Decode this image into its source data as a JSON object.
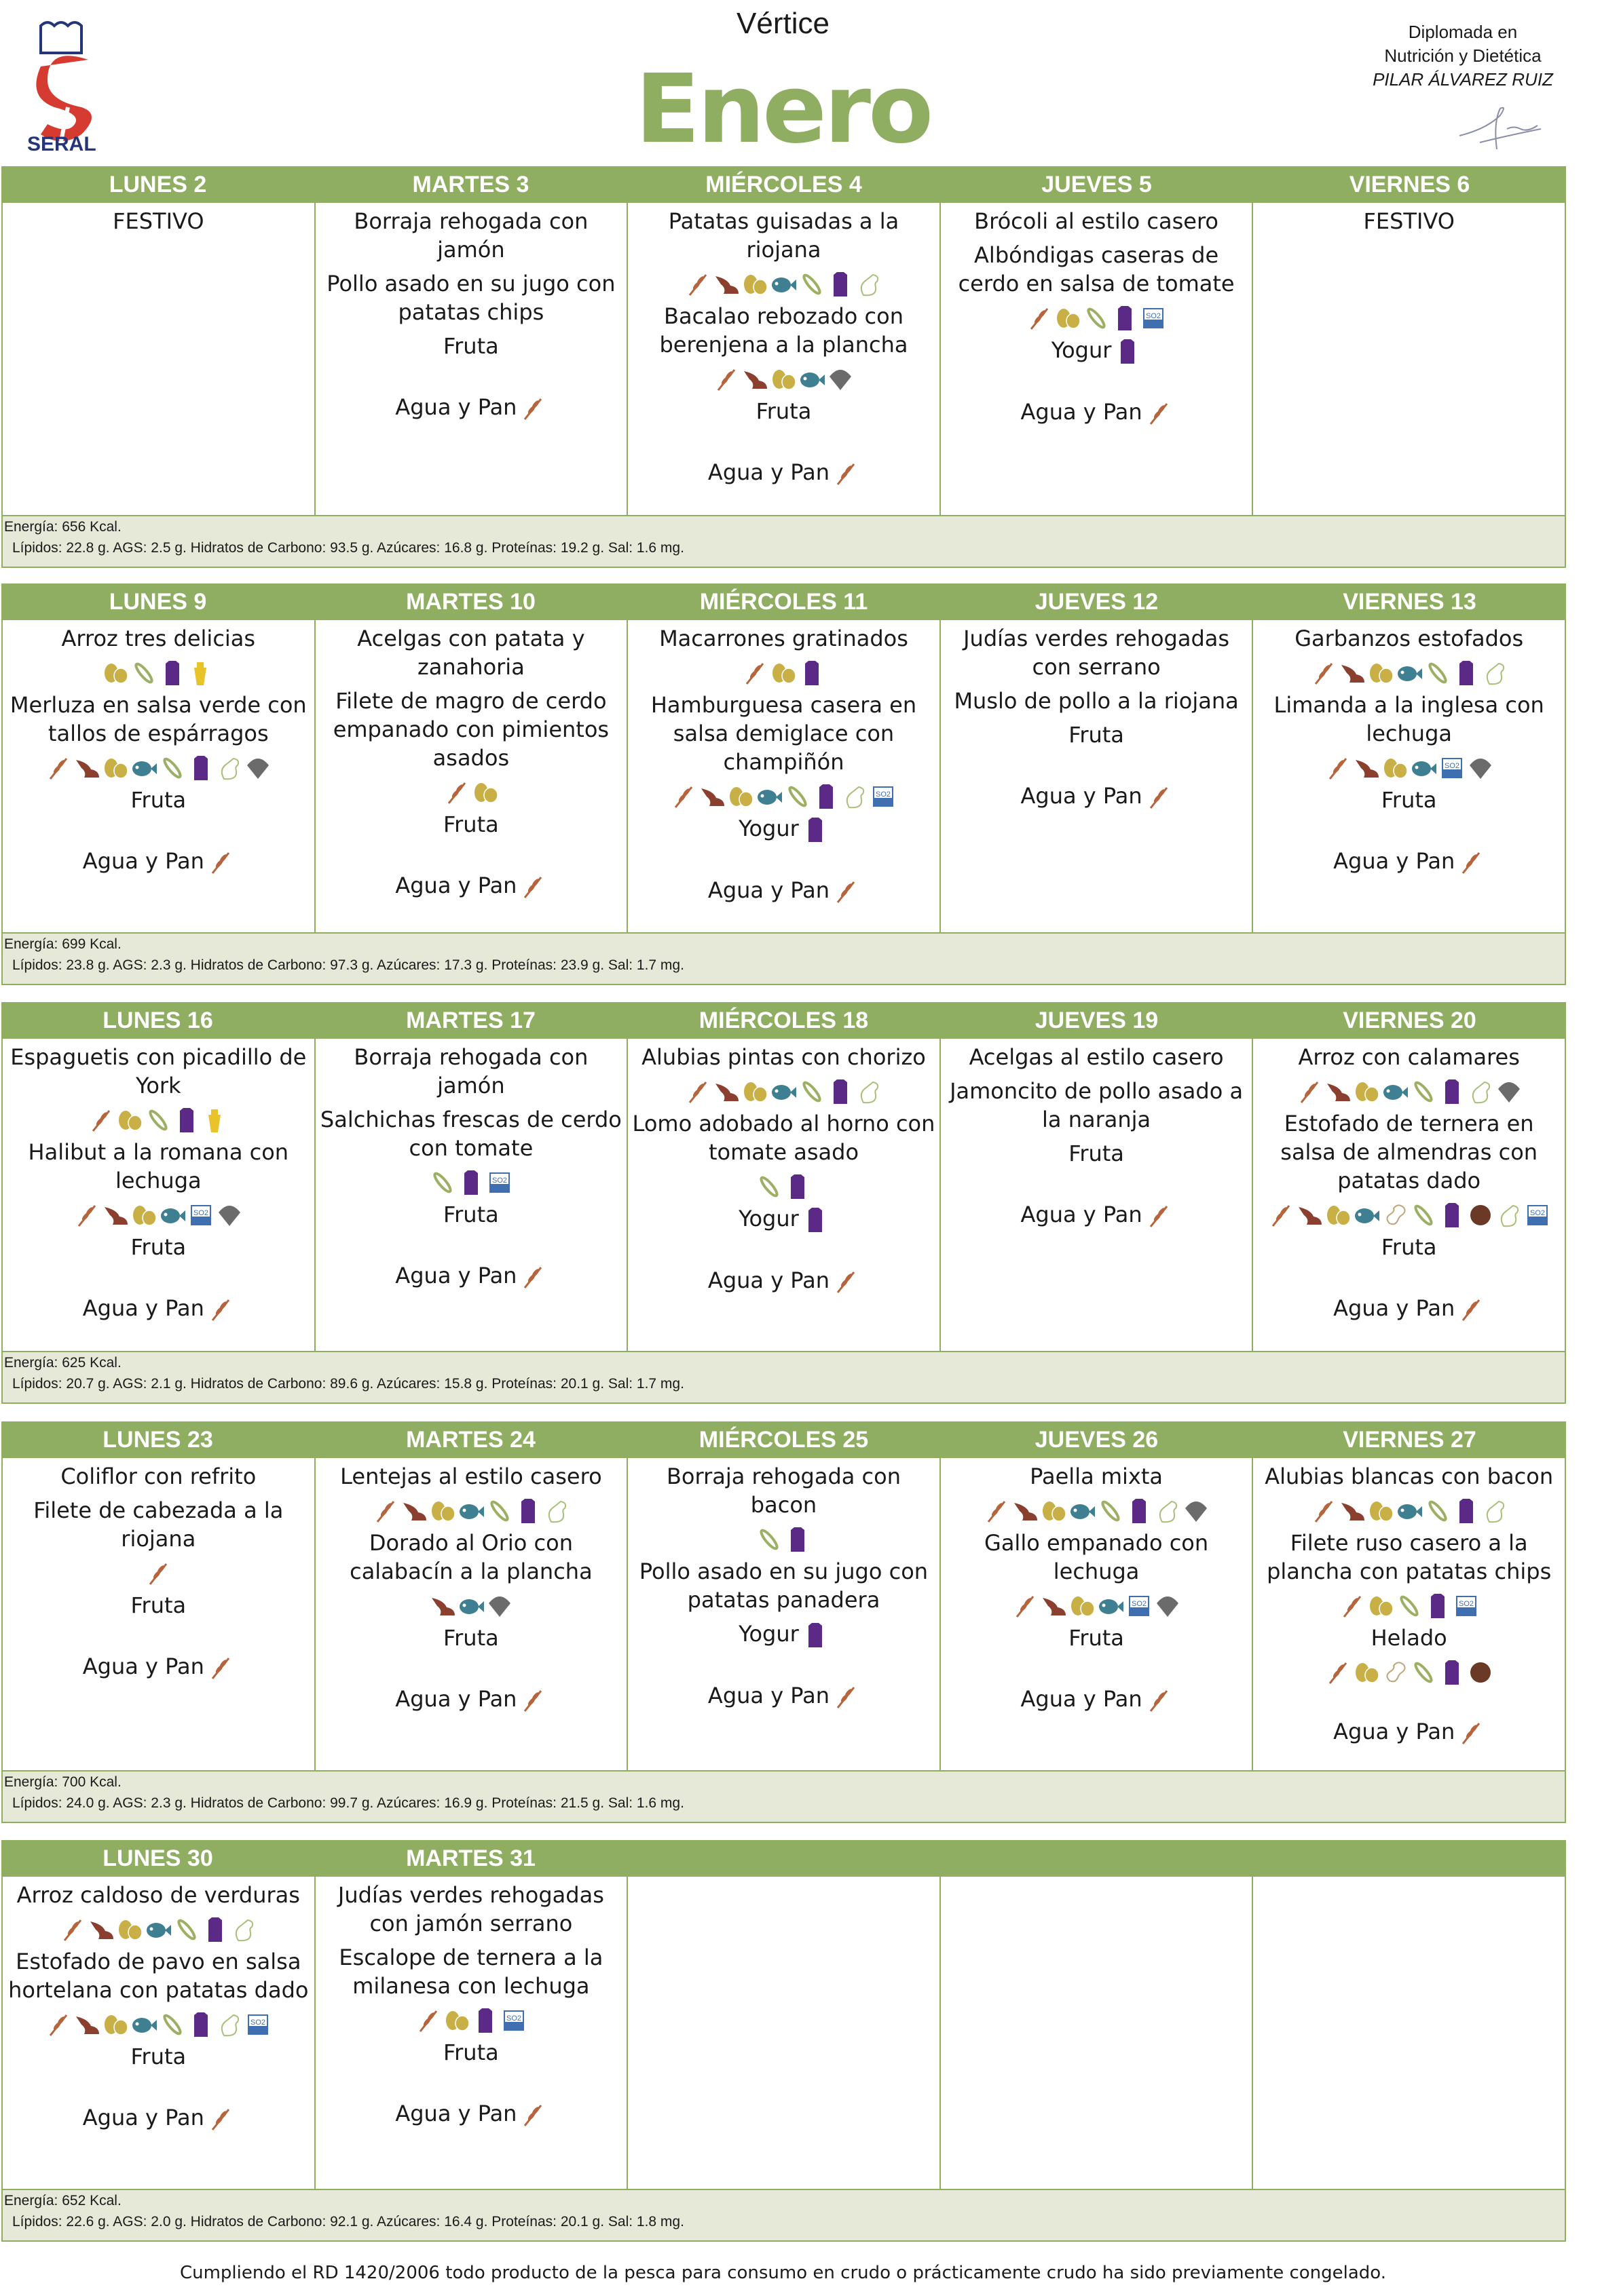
{
  "header": {
    "logo_text": "SERAL",
    "school": "Vértice",
    "month": "Enero",
    "dietitian_line1": "Diplomada en",
    "dietitian_line2": "Nutrición y Dietética",
    "dietitian_name": "PILAR ÁLVAREZ RUIZ"
  },
  "colors": {
    "accent": "#8fae62",
    "nutrition_bg": "#e6e8d8",
    "logo_red": "#d63b32",
    "logo_blue": "#25357a"
  },
  "allergen_legend": {
    "G": "gluten-wheat-icon",
    "C": "crustacean-shrimp-icon",
    "E": "egg-icon",
    "F": "fish-icon",
    "S": "soy-pod-icon",
    "M": "milk-carton-icon",
    "A": "celery-icon",
    "Y": "mustard-icon",
    "O": "sulphites-so2-icon",
    "L": "mollusc-shell-icon",
    "N": "nuts-walnut-icon",
    "P": "peanut-icon"
  },
  "weeks": [
    {
      "days": [
        "LUNES 2",
        "MARTES 3",
        "MIÉRCOLES 4",
        "JUEVES 5",
        "VIERNES 6"
      ],
      "cells": [
        [
          {
            "t": "FESTIVO"
          }
        ],
        [
          {
            "t": "Borraja rehogada con jamón"
          },
          {
            "t": "Pollo asado en su jugo con patatas chips"
          },
          {
            "t": "Fruta"
          },
          {
            "t": "Agua y Pan",
            "i": "G",
            "w": true
          }
        ],
        [
          {
            "t": "Patatas guisadas a la riojana"
          },
          {
            "i": "GCEFSMA"
          },
          {
            "t": "Bacalao rebozado con berenjena a la plancha"
          },
          {
            "i": "GCEFL"
          },
          {
            "t": "Fruta"
          },
          {
            "t": "Agua y Pan",
            "i": "G",
            "w": true
          }
        ],
        [
          {
            "t": "Brócoli al estilo casero"
          },
          {
            "t": "Albóndigas caseras de cerdo en salsa de tomate"
          },
          {
            "i": "GESMO"
          },
          {
            "t": "Yogur",
            "i": "M"
          },
          {
            "t": "Agua y Pan",
            "i": "G",
            "w": true
          }
        ],
        [
          {
            "t": "FESTIVO"
          }
        ]
      ],
      "energy": "Energía: 656 Kcal.",
      "nutrients": "Lípidos: 22.8 g. AGS: 2.5 g. Hidratos de Carbono: 93.5 g. Azúcares: 16.8 g. Proteínas: 19.2 g. Sal: 1.6 mg."
    },
    {
      "days": [
        "LUNES 9",
        "MARTES 10",
        "MIÉRCOLES 11",
        "JUEVES 12",
        "VIERNES 13"
      ],
      "cells": [
        [
          {
            "t": "Arroz tres delicias"
          },
          {
            "i": "ESMY"
          },
          {
            "t": "Merluza en salsa verde con tallos de espárragos"
          },
          {
            "i": "GCEFSMAL"
          },
          {
            "t": "Fruta"
          },
          {
            "t": "Agua y Pan",
            "i": "G",
            "w": true
          }
        ],
        [
          {
            "t": "Acelgas con patata y zanahoria"
          },
          {
            "t": "Filete de magro de cerdo empanado con pimientos asados"
          },
          {
            "i": "GE"
          },
          {
            "t": "Fruta"
          },
          {
            "t": "Agua y Pan",
            "i": "G",
            "w": true
          }
        ],
        [
          {
            "t": "Macarrones gratinados"
          },
          {
            "i": "GEM"
          },
          {
            "t": "Hamburguesa casera en salsa demiglace con champiñón"
          },
          {
            "i": "GCEFSMAO"
          },
          {
            "t": "Yogur",
            "i": "M"
          },
          {
            "t": "Agua y Pan",
            "i": "G",
            "w": true
          }
        ],
        [
          {
            "t": "Judías verdes rehogadas con serrano"
          },
          {
            "t": "Muslo de pollo a la riojana"
          },
          {
            "t": "Fruta"
          },
          {
            "t": "Agua y Pan",
            "i": "G",
            "w": true
          }
        ],
        [
          {
            "t": "Garbanzos estofados"
          },
          {
            "i": "GCEFSMA"
          },
          {
            "t": "Limanda a la inglesa con lechuga"
          },
          {
            "i": "GCEFOL"
          },
          {
            "t": "Fruta"
          },
          {
            "t": "Agua y Pan",
            "i": "G",
            "w": true
          }
        ]
      ],
      "energy": "Energía: 699 Kcal.",
      "nutrients": "Lípidos: 23.8 g. AGS: 2.3 g. Hidratos de Carbono: 97.3 g. Azúcares: 17.3 g. Proteínas: 23.9 g. Sal: 1.7 mg."
    },
    {
      "days": [
        "LUNES 16",
        "MARTES 17",
        "MIÉRCOLES 18",
        "JUEVES 19",
        "VIERNES 20"
      ],
      "cells": [
        [
          {
            "t": "Espaguetis con picadillo de York"
          },
          {
            "i": "GESMY"
          },
          {
            "t": "Halibut a la romana con lechuga"
          },
          {
            "i": "GCEFOL"
          },
          {
            "t": "Fruta"
          },
          {
            "t": "Agua y Pan",
            "i": "G",
            "w": true
          }
        ],
        [
          {
            "t": "Borraja rehogada con jamón"
          },
          {
            "t": "Salchichas frescas de cerdo con tomate"
          },
          {
            "i": "SMO"
          },
          {
            "t": "Fruta"
          },
          {
            "t": "Agua y Pan",
            "i": "G",
            "w": true
          }
        ],
        [
          {
            "t": "Alubias pintas con chorizo"
          },
          {
            "i": "GCEFSMA"
          },
          {
            "t": "Lomo adobado al horno con tomate asado"
          },
          {
            "i": "SM"
          },
          {
            "t": "Yogur",
            "i": "M"
          },
          {
            "t": "Agua y Pan",
            "i": "G",
            "w": true
          }
        ],
        [
          {
            "t": "Acelgas al estilo casero"
          },
          {
            "t": "Jamoncito de pollo asado a la naranja"
          },
          {
            "t": "Fruta"
          },
          {
            "t": "Agua y Pan",
            "i": "G",
            "w": true
          }
        ],
        [
          {
            "t": "Arroz con calamares"
          },
          {
            "i": "GCEFSMAL"
          },
          {
            "t": "Estofado de ternera en salsa de almendras con patatas dado"
          },
          {
            "i": "GCEFPSMNAO"
          },
          {
            "t": "Fruta"
          },
          {
            "t": "Agua y Pan",
            "i": "G",
            "w": true
          }
        ]
      ],
      "energy": "Energía: 625 Kcal.",
      "nutrients": "Lípidos: 20.7 g. AGS: 2.1 g. Hidratos de Carbono: 89.6 g. Azúcares: 15.8 g. Proteínas: 20.1 g. Sal: 1.7 mg."
    },
    {
      "days": [
        "LUNES 23",
        "MARTES 24",
        "MIÉRCOLES 25",
        "JUEVES 26",
        "VIERNES 27"
      ],
      "cells": [
        [
          {
            "t": "Coliflor con refrito"
          },
          {
            "t": "Filete de cabezada a la riojana"
          },
          {
            "i": "G"
          },
          {
            "t": "Fruta"
          },
          {
            "t": "Agua y Pan",
            "i": "G",
            "w": true
          }
        ],
        [
          {
            "t": "Lentejas al estilo casero"
          },
          {
            "i": "GCEFSMA"
          },
          {
            "t": "Dorado al Orio con calabacín a la plancha"
          },
          {
            "i": "CFL"
          },
          {
            "t": "Fruta"
          },
          {
            "t": "Agua y Pan",
            "i": "G",
            "w": true
          }
        ],
        [
          {
            "t": "Borraja rehogada con bacon"
          },
          {
            "i": "SM"
          },
          {
            "t": "Pollo asado en su jugo con patatas panadera"
          },
          {
            "t": "Yogur",
            "i": "M"
          },
          {
            "t": "Agua y Pan",
            "i": "G",
            "w": true
          }
        ],
        [
          {
            "t": "Paella mixta"
          },
          {
            "i": "GCEFSMAL"
          },
          {
            "t": "Gallo empanado con lechuga"
          },
          {
            "i": "GCEFOL"
          },
          {
            "t": "Fruta"
          },
          {
            "t": "Agua y Pan",
            "i": "G",
            "w": true
          }
        ],
        [
          {
            "t": "Alubias blancas con bacon"
          },
          {
            "i": "GCEFSMA"
          },
          {
            "t": "Filete ruso casero a la plancha con patatas chips"
          },
          {
            "i": "GESMO"
          },
          {
            "t": "Helado"
          },
          {
            "i": "GEPSMN"
          },
          {
            "t": "Agua y Pan",
            "i": "G",
            "w": true
          }
        ]
      ],
      "energy": "Energía: 700 Kcal.",
      "nutrients": "Lípidos: 24.0 g. AGS: 2.3 g. Hidratos de Carbono: 99.7 g. Azúcares: 16.9 g. Proteínas: 21.5 g. Sal: 1.6 mg."
    },
    {
      "days": [
        "LUNES 30",
        "MARTES 31",
        "",
        "",
        ""
      ],
      "cells": [
        [
          {
            "t": "Arroz caldoso de verduras"
          },
          {
            "i": "GCEFSMA"
          },
          {
            "t": "Estofado de pavo en salsa hortelana con patatas dado"
          },
          {
            "i": "GCEFSMAO"
          },
          {
            "t": "Fruta"
          },
          {
            "t": "Agua y Pan",
            "i": "G",
            "w": true
          }
        ],
        [
          {
            "t": "Judías verdes rehogadas con jamón serrano"
          },
          {
            "t": "Escalope de ternera a la milanesa con lechuga"
          },
          {
            "i": "GEMO"
          },
          {
            "t": "Fruta"
          },
          {
            "t": "Agua y Pan",
            "i": "G",
            "w": true
          }
        ],
        [],
        [],
        []
      ],
      "energy": "Energía: 652 Kcal.",
      "nutrients": "Lípidos: 22.6 g. AGS: 2.0 g. Hidratos de Carbono: 92.1 g. Azúcares: 16.4 g. Proteínas: 20.1 g. Sal: 1.8 mg."
    }
  ],
  "footer": "Cumpliendo el RD 1420/2006 todo producto de la pesca para consumo en crudo o prácticamente crudo ha sido previamente congelado."
}
